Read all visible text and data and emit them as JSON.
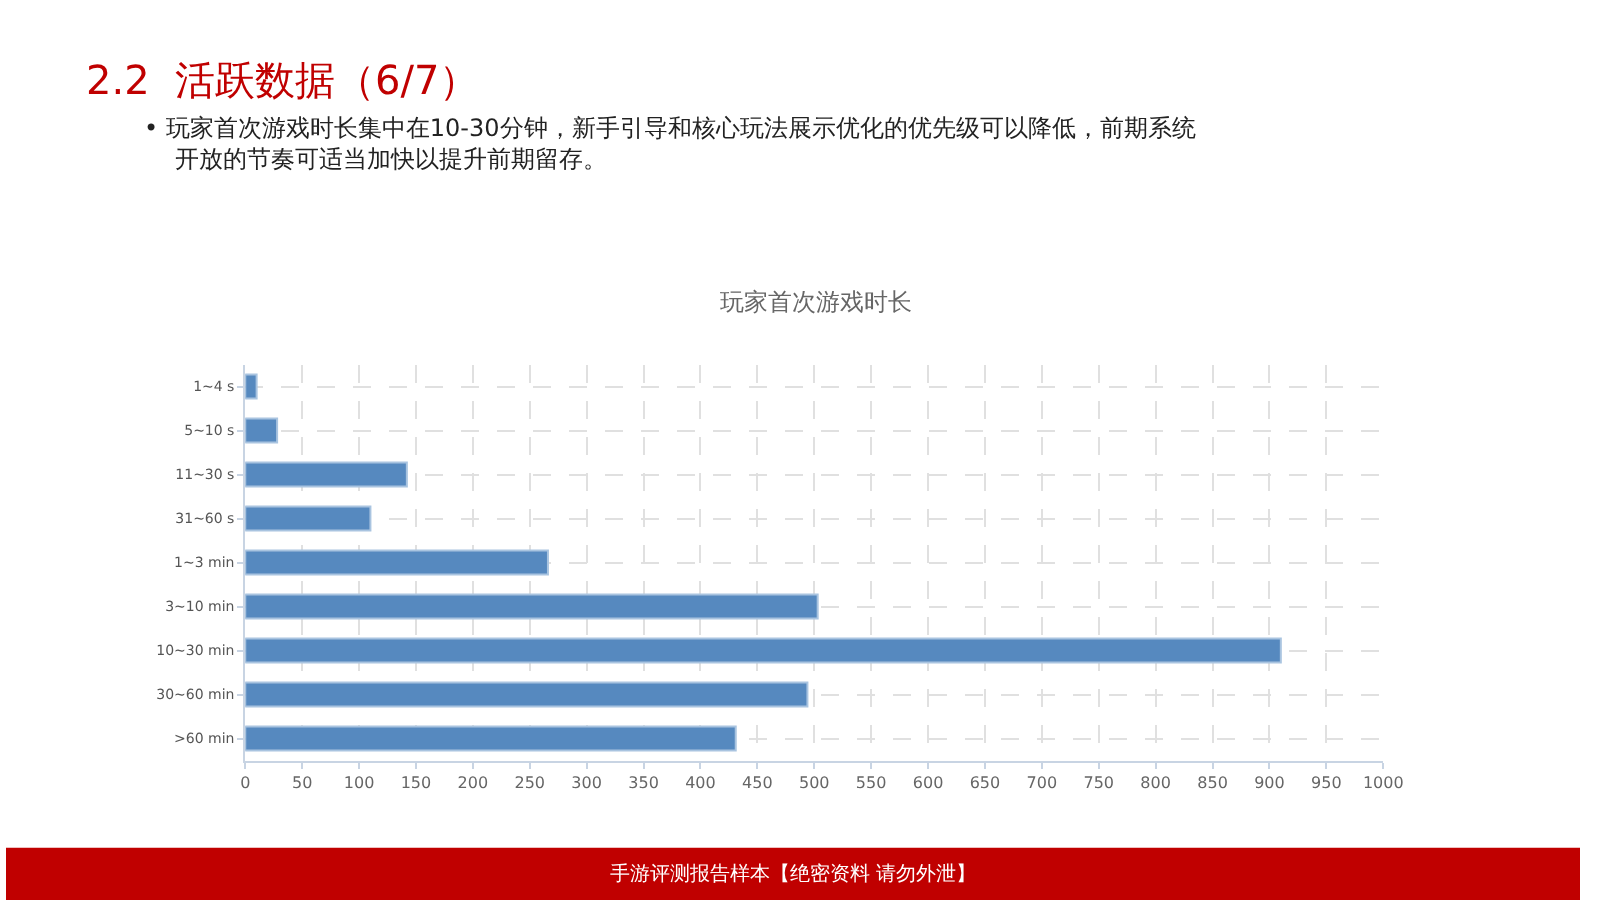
{
  "chart_data": {
    "type": "bar",
    "orientation": "horizontal",
    "title": "玩家首次游戏时长",
    "categories": [
      "1~4 s",
      "5~10 s",
      "11~30 s",
      "31~60 s",
      "1~3 min",
      "3~10 min",
      "10~30 min",
      "30~60 min",
      ">60 min"
    ],
    "values": [
      10,
      28,
      142,
      110,
      266,
      503,
      910,
      494,
      431
    ],
    "color": "#5689bf",
    "xlim": [
      0,
      1000
    ],
    "xticks": [
      0,
      50,
      100,
      150,
      200,
      250,
      300,
      350,
      400,
      450,
      500,
      550,
      600,
      650,
      700,
      750,
      800,
      850,
      900,
      950,
      1000
    ],
    "grid": true,
    "legend": false,
    "annotations": [
      "2.2  活跃数据（6/7）",
      "• 玩家首次游戏时长集中在10-30分钟，新手引导和核心玩法展示优化的优先级可以降低，前期系统开放的节奏可适当加快以提升前期留存。",
      "手游评测报告样本【绝密资料 请勿外泄】"
    ]
  }
}
